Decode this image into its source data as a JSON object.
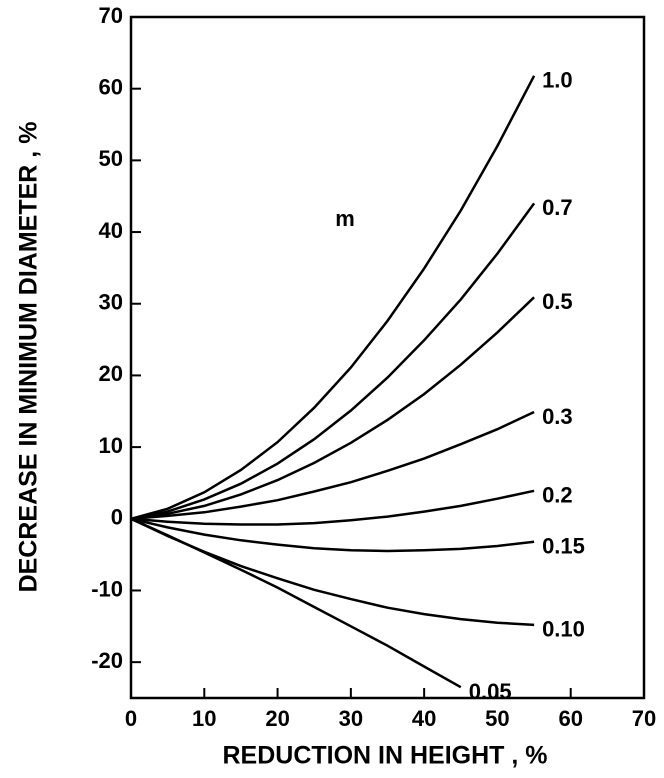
{
  "chart_data": {
    "type": "line",
    "xlabel": "REDUCTION IN HEIGHT , %",
    "ylabel": "DECREASE IN MINIMUM DIAMETER , %",
    "annotation": "m",
    "x": [
      0,
      5,
      10,
      15,
      20,
      25,
      30,
      35,
      40,
      45,
      50,
      55
    ],
    "series": [
      {
        "name": "1.0",
        "color": "#000000",
        "values": [
          0,
          1.4,
          3.7,
          6.8,
          10.7,
          15.5,
          21.1,
          27.6,
          34.9,
          43.0,
          52.0,
          61.8
        ]
      },
      {
        "name": "0.7",
        "color": "#000000",
        "values": [
          0,
          1.0,
          2.7,
          4.9,
          7.7,
          11.1,
          15.1,
          19.7,
          24.9,
          30.6,
          37.0,
          44.0
        ]
      },
      {
        "name": "0.5",
        "color": "#000000",
        "values": [
          0,
          0.7,
          1.8,
          3.4,
          5.4,
          7.8,
          10.6,
          13.8,
          17.4,
          21.5,
          26.0,
          30.9
        ]
      },
      {
        "name": "0.3",
        "color": "#000000",
        "values": [
          0,
          0.4,
          0.9,
          1.7,
          2.6,
          3.8,
          5.1,
          6.7,
          8.4,
          10.4,
          12.5,
          14.9
        ]
      },
      {
        "name": "0.2",
        "color": "#000000",
        "values": [
          0,
          -0.4,
          -0.7,
          -0.8,
          -0.8,
          -0.6,
          -0.2,
          0.3,
          1.0,
          1.8,
          2.8,
          3.9
        ]
      },
      {
        "name": "0.15",
        "color": "#000000",
        "values": [
          0,
          -1.2,
          -2.2,
          -3.0,
          -3.6,
          -4.1,
          -4.4,
          -4.5,
          -4.4,
          -4.2,
          -3.8,
          -3.2
        ]
      },
      {
        "name": "0.10",
        "color": "#000000",
        "values": [
          0,
          -2.4,
          -4.6,
          -6.6,
          -8.3,
          -9.9,
          -11.2,
          -12.4,
          -13.3,
          -14.0,
          -14.5,
          -14.8
        ]
      },
      {
        "name": "0.05",
        "color": "#000000",
        "values": [
          0,
          -2.3,
          -4.7,
          -7.1,
          -9.6,
          -12.3,
          -15.0,
          -17.7,
          -20.6,
          -23.5,
          null,
          null
        ]
      }
    ],
    "xlim": [
      0,
      70
    ],
    "xticks": [
      0,
      10,
      20,
      30,
      40,
      50,
      60,
      70
    ],
    "ylim": [
      -25,
      70
    ],
    "yticks": [
      -20,
      -10,
      0,
      10,
      20,
      30,
      40,
      50,
      60,
      70
    ],
    "grid": false
  }
}
